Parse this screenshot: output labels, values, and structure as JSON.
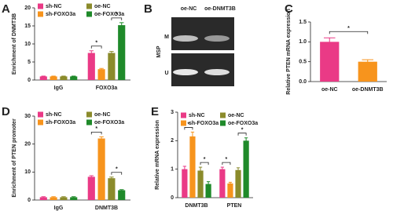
{
  "chart_data": [
    {
      "type": "bar",
      "panel": "A",
      "ylabel": "Enrichment of DNMT3B",
      "categories": [
        "IgG",
        "FOXO3a"
      ],
      "series": [
        {
          "name": "sh-NC",
          "color": "#ea3a86",
          "values": [
            1,
            7.5
          ],
          "errors": [
            0.1,
            0.6
          ]
        },
        {
          "name": "sh-FOXO3a",
          "color": "#f7941d",
          "values": [
            1,
            3
          ],
          "errors": [
            0.1,
            0.2
          ]
        },
        {
          "name": "oe-NC",
          "color": "#8b8b2b",
          "values": [
            1,
            7.5
          ],
          "errors": [
            0.1,
            0.4
          ]
        },
        {
          "name": "oe-FOXO3a",
          "color": "#1f8a2a",
          "values": [
            1,
            15.2
          ],
          "errors": [
            0.1,
            0.7
          ]
        }
      ],
      "ylim": [
        0,
        20
      ],
      "yticks": [
        0,
        5,
        10,
        15,
        20
      ],
      "significance": [
        {
          "label": "*",
          "category": 1,
          "series": [
            0,
            1
          ]
        },
        {
          "label": "*",
          "category": 1,
          "series": [
            2,
            3
          ]
        }
      ]
    },
    {
      "type": "gel",
      "panel": "B",
      "lanes": [
        "oe-NC",
        "oe-DNMT3B"
      ],
      "ylabel": "MSP",
      "rows": [
        "M",
        "U"
      ]
    },
    {
      "type": "bar",
      "panel": "C",
      "ylabel": "Relative PTEN mRNA expression",
      "categories": [
        "oe-NC",
        "oe-DNMT3B"
      ],
      "series": [
        {
          "colors": [
            "#ea3a86",
            "#f7941d"
          ],
          "values": [
            1.0,
            0.5
          ],
          "errors": [
            0.1,
            0.05
          ]
        }
      ],
      "ylim": [
        0,
        1.5
      ],
      "yticks": [
        {
          "value": 0,
          "label": "0.0"
        },
        0.5,
        {
          "value": 1,
          "label": "1.0"
        },
        1.5
      ],
      "significance": [
        {
          "label": "*",
          "categories": [
            0,
            1
          ]
        }
      ]
    },
    {
      "type": "bar",
      "panel": "D",
      "ylabel": "Enrichment of PTEN promoter",
      "categories": [
        "IgG",
        "DNMT3B"
      ],
      "series": [
        {
          "name": "sh-NC",
          "color": "#ea3a86",
          "values": [
            1,
            8.3
          ],
          "errors": [
            0.2,
            0.4
          ]
        },
        {
          "name": "sh-FOXO3a",
          "color": "#f7941d",
          "values": [
            1,
            22
          ],
          "errors": [
            0.2,
            0.6
          ]
        },
        {
          "name": "oe-NC",
          "color": "#8b8b2b",
          "values": [
            1,
            7.8
          ],
          "errors": [
            0.2,
            0.4
          ]
        },
        {
          "name": "oe-FOXO3a",
          "color": "#1f8a2a",
          "values": [
            1,
            3.5
          ],
          "errors": [
            0.2,
            0.2
          ]
        }
      ],
      "ylim": [
        0,
        30
      ],
      "yticks": [
        0,
        10,
        20,
        30
      ],
      "significance": [
        {
          "label": "*",
          "category": 1,
          "series": [
            0,
            1
          ]
        },
        {
          "label": "*",
          "category": 1,
          "series": [
            2,
            3
          ]
        }
      ]
    },
    {
      "type": "bar",
      "panel": "E",
      "ylabel": "Relative mRNA expression",
      "categories": [
        "DNMT3B",
        "PTEN"
      ],
      "series": [
        {
          "name": "sh-NC",
          "color": "#ea3a86",
          "values": [
            1.0,
            1.0
          ],
          "errors": [
            0.1,
            0.07
          ]
        },
        {
          "name": "sh-FOXO3a",
          "color": "#f7941d",
          "values": [
            2.15,
            0.5
          ],
          "errors": [
            0.15,
            0.04
          ]
        },
        {
          "name": "oe-NC",
          "color": "#8b8b2b",
          "values": [
            0.95,
            0.97
          ],
          "errors": [
            0.12,
            0.08
          ]
        },
        {
          "name": "oe-FOXO3a",
          "color": "#1f8a2a",
          "values": [
            0.48,
            2.0
          ],
          "errors": [
            0.08,
            0.1
          ]
        }
      ],
      "ylim": [
        0,
        3
      ],
      "yticks": [
        0,
        1,
        2,
        3
      ],
      "significance": [
        {
          "label": "*",
          "category": 0,
          "series": [
            0,
            1
          ]
        },
        {
          "label": "*",
          "category": 0,
          "series": [
            2,
            3
          ]
        },
        {
          "label": "*",
          "category": 1,
          "series": [
            0,
            1
          ]
        },
        {
          "label": "*",
          "category": 1,
          "series": [
            2,
            3
          ]
        }
      ]
    }
  ]
}
